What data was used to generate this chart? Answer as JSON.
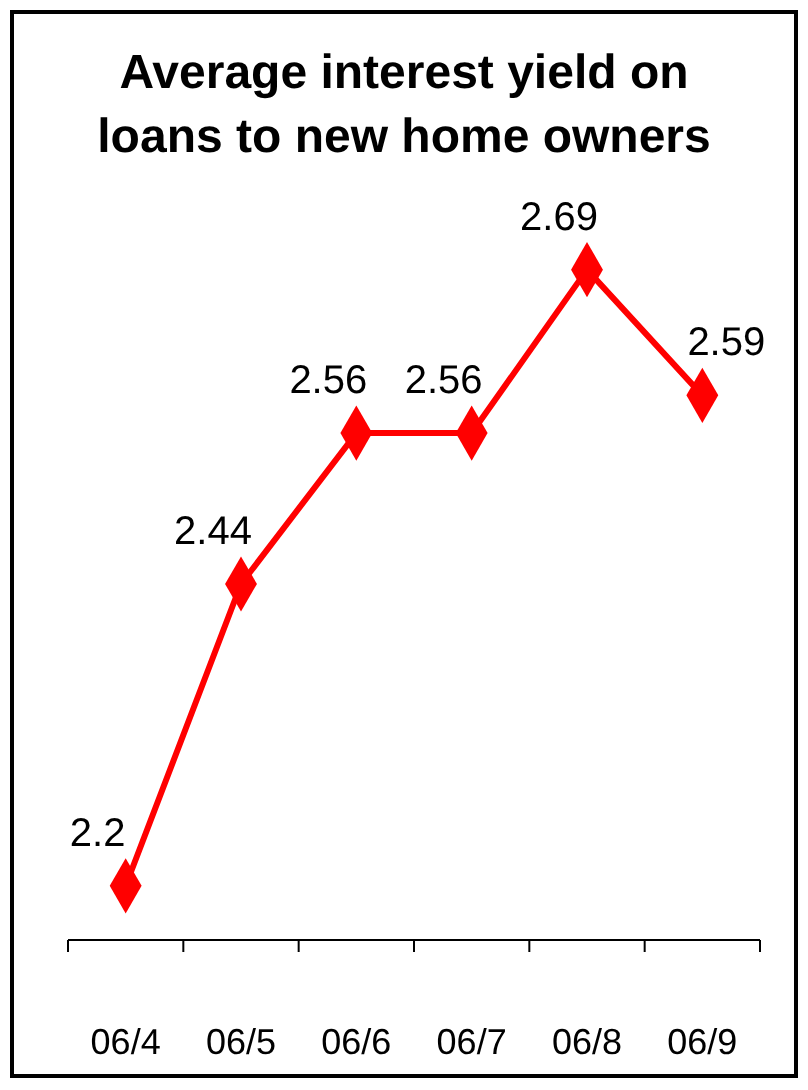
{
  "chart_data": {
    "type": "line",
    "title": "Average interest yield on\nloans to new home owners",
    "categories": [
      "06/4",
      "06/5",
      "06/6",
      "06/7",
      "06/8",
      "06/9"
    ],
    "series": [
      {
        "color": "#ff0000",
        "values": [
          2.2,
          2.44,
          2.56,
          2.56,
          2.69,
          2.59
        ]
      }
    ],
    "marker": "diamond",
    "data_labels": true
  }
}
